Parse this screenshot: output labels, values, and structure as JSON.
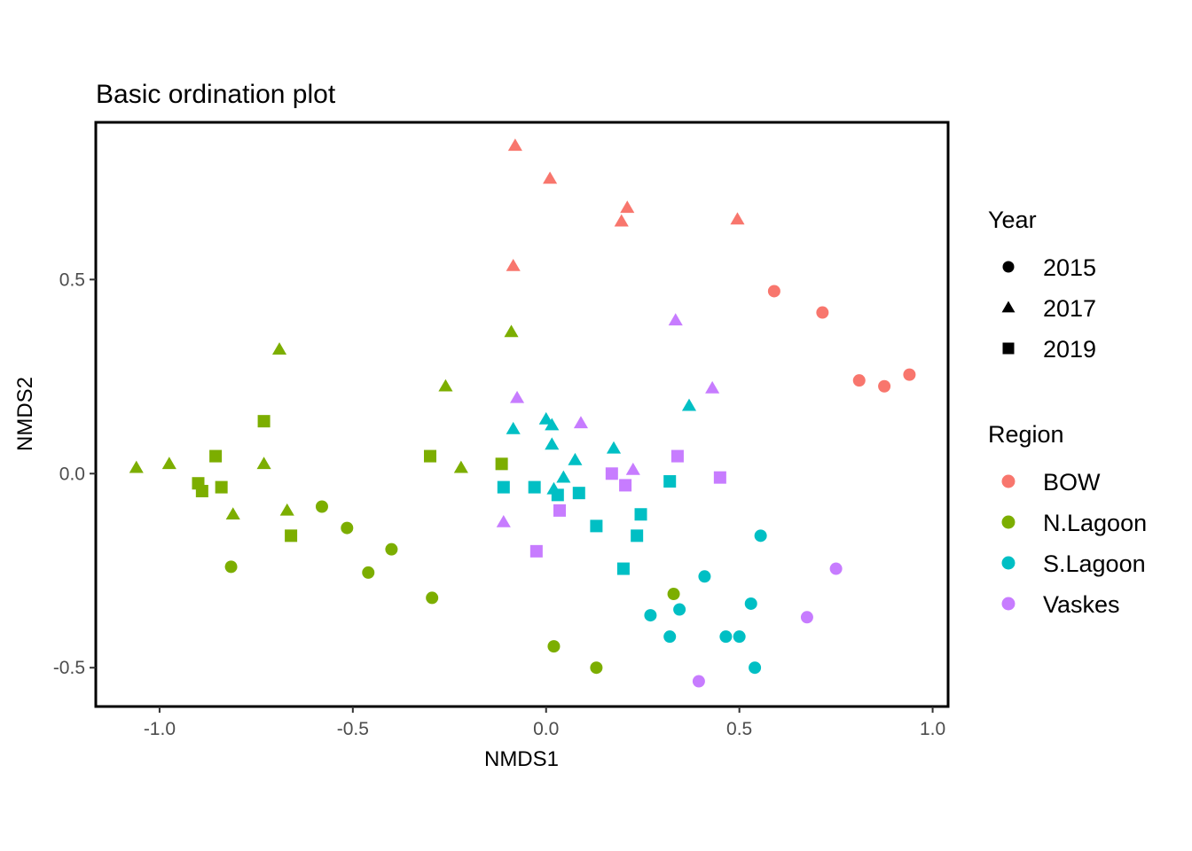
{
  "chart_data": {
    "type": "scatter",
    "title": "Basic ordination plot",
    "xlabel": "NMDS1",
    "ylabel": "NMDS2",
    "xlim": [
      -1.165,
      1.04
    ],
    "ylim": [
      -0.6,
      0.905
    ],
    "xticks": [
      -1.0,
      -0.5,
      0.0,
      0.5,
      1.0
    ],
    "xtick_labels": [
      "-1.0",
      "-0.5",
      "0.0",
      "0.5",
      "1.0"
    ],
    "yticks": [
      -0.5,
      0.0,
      0.5
    ],
    "ytick_labels": [
      "-0.5",
      "0.0",
      "0.5"
    ],
    "grid": false,
    "shape_legend": {
      "title": "Year",
      "entries": [
        {
          "label": "2015",
          "shape": "circle"
        },
        {
          "label": "2017",
          "shape": "triangle"
        },
        {
          "label": "2019",
          "shape": "square"
        }
      ]
    },
    "color_legend": {
      "title": "Region",
      "entries": [
        {
          "label": "BOW",
          "color": "#F8766D"
        },
        {
          "label": "N.Lagoon",
          "color": "#7CAE00"
        },
        {
          "label": "S.Lagoon",
          "color": "#00BFC4"
        },
        {
          "label": "Vaskes",
          "color": "#C77CFF"
        }
      ]
    },
    "legend_position": "right",
    "series": [
      {
        "region": "BOW",
        "year": "2015",
        "points": [
          [
            0.59,
            0.47
          ],
          [
            0.715,
            0.415
          ],
          [
            0.81,
            0.24
          ],
          [
            0.875,
            0.225
          ],
          [
            0.94,
            0.255
          ]
        ]
      },
      {
        "region": "BOW",
        "year": "2017",
        "points": [
          [
            -0.08,
            0.845
          ],
          [
            0.01,
            0.76
          ],
          [
            0.21,
            0.685
          ],
          [
            0.195,
            0.65
          ],
          [
            0.495,
            0.655
          ],
          [
            -0.085,
            0.535
          ]
        ]
      },
      {
        "region": "N.Lagoon",
        "year": "2015",
        "points": [
          [
            -0.58,
            -0.085
          ],
          [
            -0.515,
            -0.14
          ],
          [
            -0.4,
            -0.195
          ],
          [
            -0.46,
            -0.255
          ],
          [
            -0.815,
            -0.24
          ],
          [
            -0.295,
            -0.32
          ],
          [
            0.33,
            -0.31
          ],
          [
            0.02,
            -0.445
          ],
          [
            0.13,
            -0.5
          ]
        ]
      },
      {
        "region": "N.Lagoon",
        "year": "2017",
        "points": [
          [
            -0.69,
            0.32
          ],
          [
            -0.09,
            0.365
          ],
          [
            -0.26,
            0.225
          ],
          [
            -1.06,
            0.015
          ],
          [
            -0.975,
            0.025
          ],
          [
            -0.73,
            0.025
          ],
          [
            -0.22,
            0.015
          ],
          [
            -0.81,
            -0.105
          ],
          [
            -0.67,
            -0.095
          ]
        ]
      },
      {
        "region": "N.Lagoon",
        "year": "2019",
        "points": [
          [
            -0.73,
            0.135
          ],
          [
            -0.3,
            0.045
          ],
          [
            -0.855,
            0.045
          ],
          [
            -0.115,
            0.025
          ],
          [
            -0.9,
            -0.025
          ],
          [
            -0.89,
            -0.045
          ],
          [
            -0.84,
            -0.035
          ],
          [
            -0.66,
            -0.16
          ]
        ]
      },
      {
        "region": "S.Lagoon",
        "year": "2015",
        "points": [
          [
            0.555,
            -0.16
          ],
          [
            0.41,
            -0.265
          ],
          [
            0.345,
            -0.35
          ],
          [
            0.27,
            -0.365
          ],
          [
            0.53,
            -0.335
          ],
          [
            0.32,
            -0.42
          ],
          [
            0.465,
            -0.42
          ],
          [
            0.5,
            -0.42
          ],
          [
            0.54,
            -0.5
          ]
        ]
      },
      {
        "region": "S.Lagoon",
        "year": "2017",
        "points": [
          [
            -0.085,
            0.115
          ],
          [
            0.0,
            0.14
          ],
          [
            0.015,
            0.125
          ],
          [
            0.015,
            0.075
          ],
          [
            0.075,
            0.035
          ],
          [
            0.175,
            0.065
          ],
          [
            0.37,
            0.175
          ],
          [
            0.045,
            -0.01
          ],
          [
            0.02,
            -0.04
          ]
        ]
      },
      {
        "region": "S.Lagoon",
        "year": "2019",
        "points": [
          [
            -0.11,
            -0.035
          ],
          [
            -0.03,
            -0.035
          ],
          [
            0.03,
            -0.055
          ],
          [
            0.085,
            -0.05
          ],
          [
            0.13,
            -0.135
          ],
          [
            0.245,
            -0.105
          ],
          [
            0.235,
            -0.16
          ],
          [
            0.2,
            -0.245
          ],
          [
            0.32,
            -0.02
          ]
        ]
      },
      {
        "region": "Vaskes",
        "year": "2015",
        "points": [
          [
            0.75,
            -0.245
          ],
          [
            0.675,
            -0.37
          ],
          [
            0.395,
            -0.535
          ]
        ]
      },
      {
        "region": "Vaskes",
        "year": "2017",
        "points": [
          [
            0.335,
            0.395
          ],
          [
            0.43,
            0.22
          ],
          [
            -0.075,
            0.195
          ],
          [
            0.09,
            0.13
          ],
          [
            0.225,
            0.01
          ],
          [
            -0.11,
            -0.125
          ]
        ]
      },
      {
        "region": "Vaskes",
        "year": "2019",
        "points": [
          [
            0.34,
            0.045
          ],
          [
            0.45,
            -0.01
          ],
          [
            0.17,
            0.0
          ],
          [
            0.205,
            -0.03
          ],
          [
            0.035,
            -0.095
          ],
          [
            -0.025,
            -0.2
          ]
        ]
      }
    ]
  }
}
